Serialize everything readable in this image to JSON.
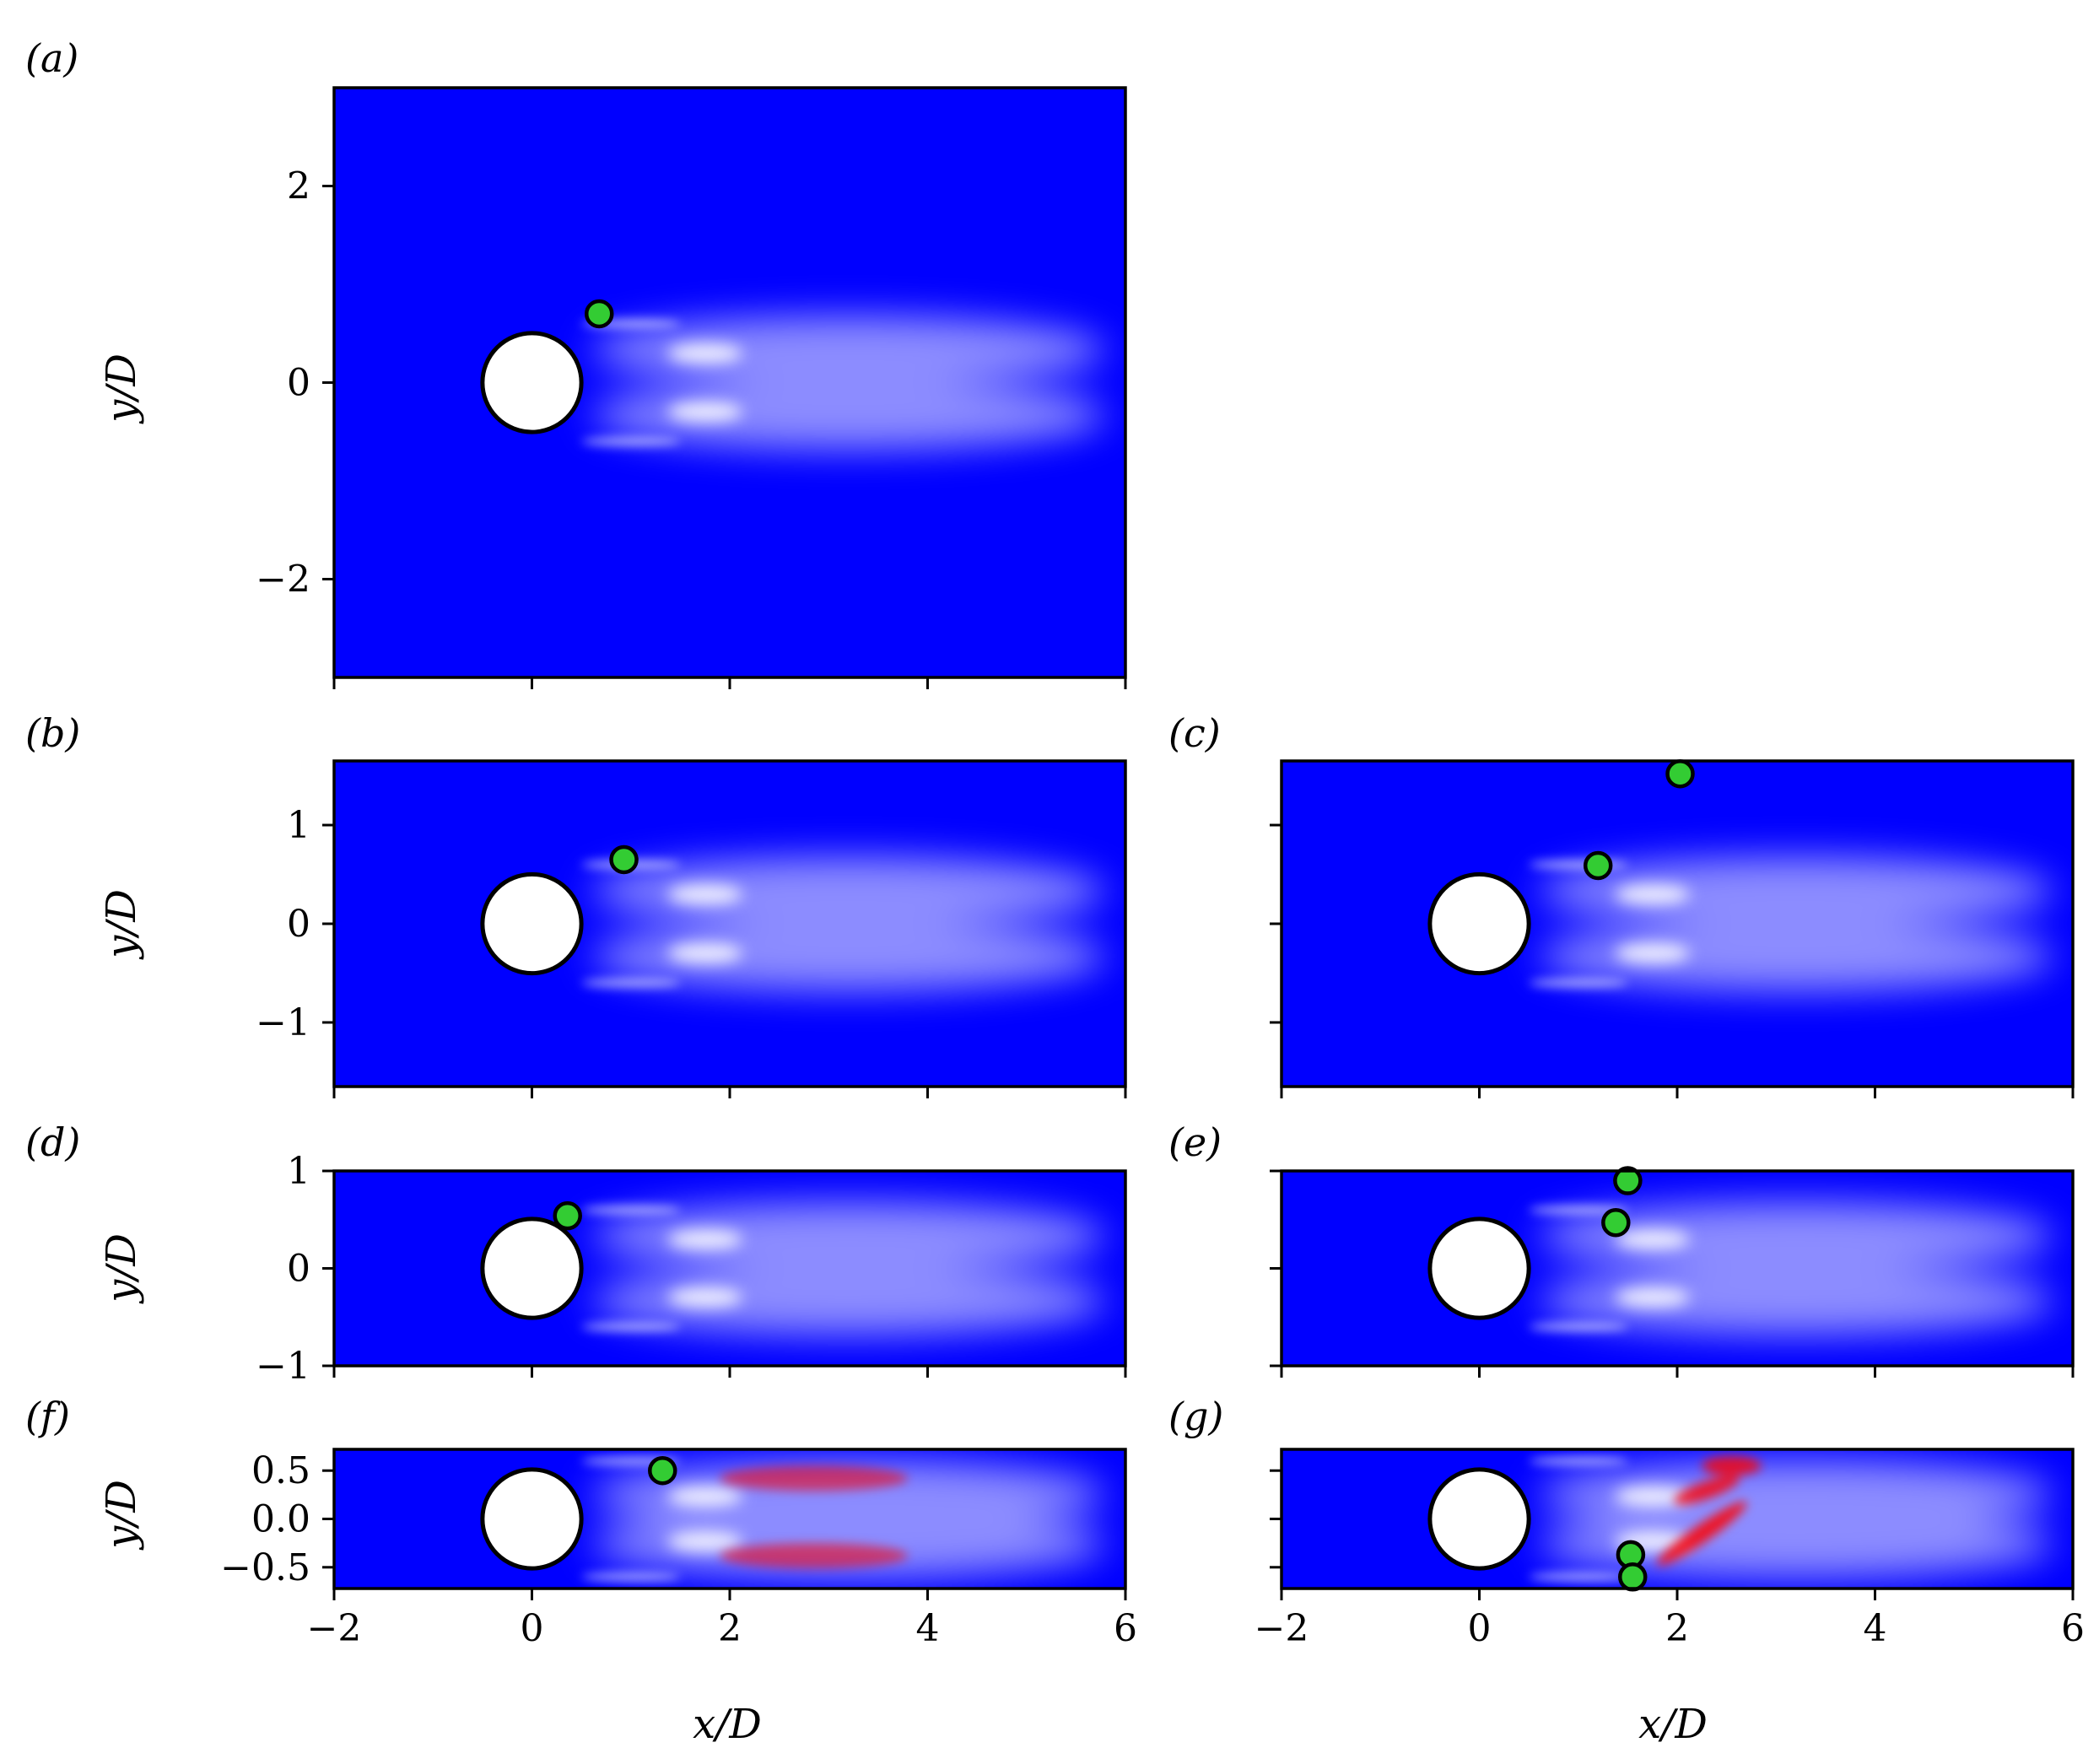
{
  "chart_data": [
    {
      "type": "heatmap",
      "panel": "a",
      "label": "(a)",
      "ylabel": "y/D",
      "xlabel": "",
      "xlim": [
        -2,
        6
      ],
      "ylim": [
        -3,
        3
      ],
      "yticks": [
        -2,
        0,
        2
      ],
      "ytick_labels": [
        "−2",
        "0",
        "2"
      ],
      "xticks": [
        -2,
        0,
        2,
        4,
        6
      ],
      "xtick_labels": [],
      "cylinder": {
        "x": 0,
        "y": 0,
        "diameter": 1
      },
      "markers": [
        {
          "x": 0.68,
          "y": 0.7
        }
      ],
      "red_regions": false
    },
    {
      "type": "heatmap",
      "panel": "b",
      "label": "(b)",
      "ylabel": "y/D",
      "xlabel": "",
      "xlim": [
        -2,
        6
      ],
      "ylim": [
        -1.65,
        1.65
      ],
      "yticks": [
        -1,
        0,
        1
      ],
      "ytick_labels": [
        "−1",
        "0",
        "1"
      ],
      "xticks": [
        -2,
        0,
        2,
        4,
        6
      ],
      "xtick_labels": [],
      "cylinder": {
        "x": 0,
        "y": 0,
        "diameter": 1
      },
      "markers": [
        {
          "x": 0.93,
          "y": 0.65
        }
      ],
      "red_regions": false
    },
    {
      "type": "heatmap",
      "panel": "c",
      "label": "(c)",
      "ylabel": "",
      "xlabel": "",
      "xlim": [
        -2,
        6
      ],
      "ylim": [
        -1.65,
        1.65
      ],
      "yticks": [
        -1,
        0,
        1
      ],
      "ytick_labels": [],
      "xticks": [
        -2,
        0,
        2,
        4,
        6
      ],
      "xtick_labels": [],
      "cylinder": {
        "x": 0,
        "y": 0,
        "diameter": 1
      },
      "markers": [
        {
          "x": 2.03,
          "y": 1.52
        },
        {
          "x": 1.2,
          "y": 0.59
        }
      ],
      "red_regions": false
    },
    {
      "type": "heatmap",
      "panel": "d",
      "label": "(d)",
      "ylabel": "y/D",
      "xlabel": "",
      "xlim": [
        -2,
        6
      ],
      "ylim": [
        -1,
        1
      ],
      "yticks": [
        -1,
        0,
        1
      ],
      "ytick_labels": [
        "−1",
        "0",
        "1"
      ],
      "xticks": [
        -2,
        0,
        2,
        4,
        6
      ],
      "xtick_labels": [],
      "cylinder": {
        "x": 0,
        "y": 0,
        "diameter": 1
      },
      "markers": [
        {
          "x": 0.36,
          "y": 0.54
        }
      ],
      "red_regions": false
    },
    {
      "type": "heatmap",
      "panel": "e",
      "label": "(e)",
      "ylabel": "",
      "xlabel": "",
      "xlim": [
        -2,
        6
      ],
      "ylim": [
        -1,
        1
      ],
      "yticks": [
        -1,
        0,
        1
      ],
      "ytick_labels": [],
      "xticks": [
        -2,
        0,
        2,
        4,
        6
      ],
      "xtick_labels": [],
      "cylinder": {
        "x": 0,
        "y": 0,
        "diameter": 1
      },
      "markers": [
        {
          "x": 1.5,
          "y": 0.9
        },
        {
          "x": 1.38,
          "y": 0.47
        }
      ],
      "red_regions": false
    },
    {
      "type": "heatmap",
      "panel": "f",
      "label": "(f)",
      "ylabel": "y/D",
      "xlabel": "x/D",
      "xlim": [
        -2,
        6
      ],
      "ylim": [
        -0.72,
        0.72
      ],
      "yticks": [
        -0.5,
        0,
        0.5
      ],
      "ytick_labels": [
        "−0.5",
        "0.0",
        "0.5"
      ],
      "xticks": [
        -2,
        0,
        2,
        4,
        6
      ],
      "xtick_labels": [
        "−2",
        "0",
        "2",
        "4",
        "6"
      ],
      "cylinder": {
        "x": 0,
        "y": 0,
        "diameter": 1
      },
      "markers": [
        {
          "x": 1.32,
          "y": 0.5
        }
      ],
      "red_regions": "symmetric"
    },
    {
      "type": "heatmap",
      "panel": "g",
      "label": "(g)",
      "ylabel": "",
      "xlabel": "x/D",
      "xlim": [
        -2,
        6
      ],
      "ylim": [
        -0.72,
        0.72
      ],
      "yticks": [
        -0.5,
        0,
        0.5
      ],
      "ytick_labels": [],
      "xticks": [
        -2,
        0,
        2,
        4,
        6
      ],
      "xtick_labels": [
        "−2",
        "0",
        "2",
        "4",
        "6"
      ],
      "cylinder": {
        "x": 0,
        "y": 0,
        "diameter": 1
      },
      "markers": [
        {
          "x": 1.53,
          "y": -0.37
        },
        {
          "x": 1.55,
          "y": -0.6
        }
      ],
      "red_regions": "asymmetric"
    }
  ],
  "colors": {
    "background_field": "#0000ff",
    "wake_light": "#ffffff",
    "positive_region": "#ff0000",
    "marker_fill": "#33cc33",
    "marker_edge": "#000000",
    "cylinder_fill": "#ffffff",
    "axes": "#000000"
  }
}
